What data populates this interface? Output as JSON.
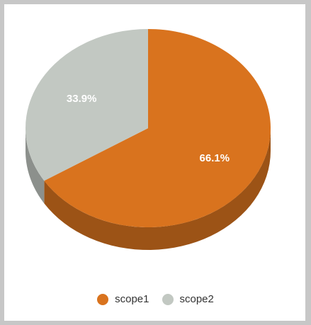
{
  "chart_data": {
    "type": "pie",
    "categories": [
      "scope1",
      "scope2"
    ],
    "values": [
      66.1,
      33.9
    ],
    "data_labels": [
      "66.1%",
      "33.9%"
    ],
    "colors": [
      "#d9731e",
      "#c2c8c2"
    ],
    "title": "",
    "legend": "bottom",
    "three_d": true
  }
}
